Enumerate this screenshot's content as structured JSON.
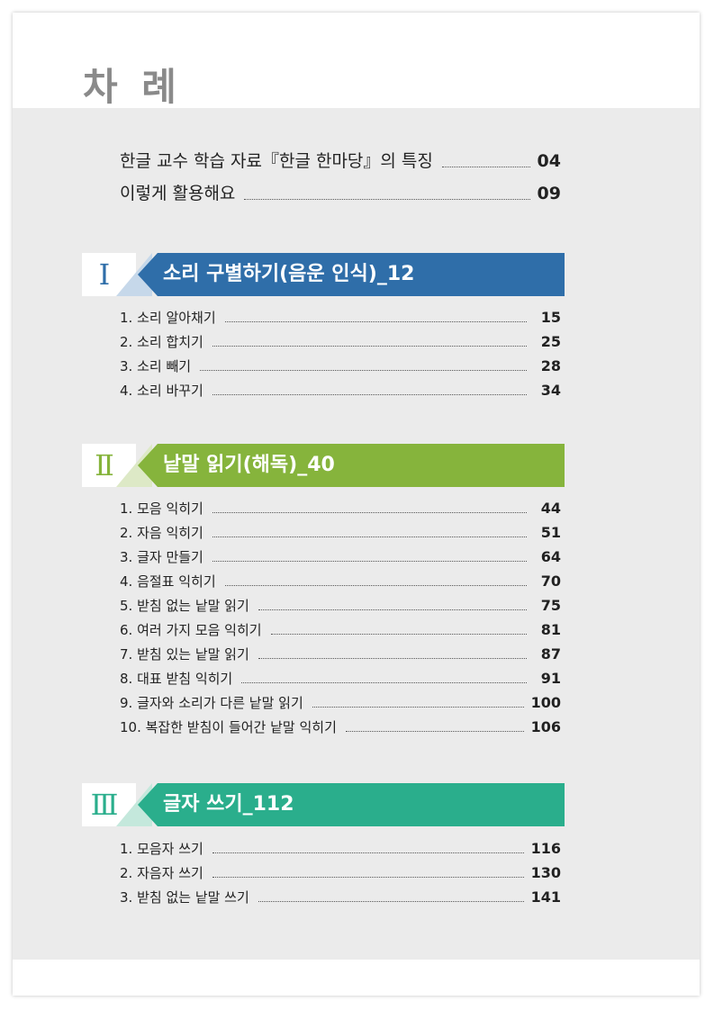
{
  "title": "차 례",
  "intro": [
    {
      "label": "한글 교수 학습 자료『한글 한마당』의 특징",
      "page": "04"
    },
    {
      "label": "이렇게 활용해요",
      "page": "09"
    }
  ],
  "colors": {
    "section1": "#2f6ea9",
    "section2": "#86b43c",
    "section3": "#2aae8c",
    "title_gray": "#8a8a8a",
    "page_background": "#ebebeb"
  },
  "sections": [
    {
      "numeral": "Ⅰ",
      "title": "소리 구별하기(음운 인식)_12",
      "items": [
        {
          "label": "1. 소리 알아채기",
          "page": "15"
        },
        {
          "label": "2. 소리 합치기",
          "page": "25"
        },
        {
          "label": "3. 소리 빼기",
          "page": "28"
        },
        {
          "label": "4. 소리 바꾸기",
          "page": "34"
        }
      ]
    },
    {
      "numeral": "Ⅱ",
      "title": "낱말 읽기(해독)_40",
      "items": [
        {
          "label": "1. 모음 익히기",
          "page": "44"
        },
        {
          "label": "2. 자음 익히기",
          "page": "51"
        },
        {
          "label": "3. 글자 만들기",
          "page": "64"
        },
        {
          "label": "4. 음절표 익히기",
          "page": "70"
        },
        {
          "label": "5. 받침 없는 낱말 읽기",
          "page": "75"
        },
        {
          "label": "6. 여러 가지 모음 익히기",
          "page": "81"
        },
        {
          "label": "7. 받침 있는 낱말 읽기",
          "page": "87"
        },
        {
          "label": "8. 대표 받침 익히기",
          "page": "91"
        },
        {
          "label": "9. 글자와 소리가 다른 낱말 읽기",
          "page": "100"
        },
        {
          "label": "10. 복잡한 받침이 들어간 낱말 익히기",
          "page": "106"
        }
      ]
    },
    {
      "numeral": "Ⅲ",
      "title": "글자 쓰기_112",
      "items": [
        {
          "label": "1. 모음자 쓰기",
          "page": "116"
        },
        {
          "label": "2. 자음자 쓰기",
          "page": "130"
        },
        {
          "label": "3. 받침 없는 낱말 쓰기",
          "page": "141"
        }
      ]
    }
  ]
}
